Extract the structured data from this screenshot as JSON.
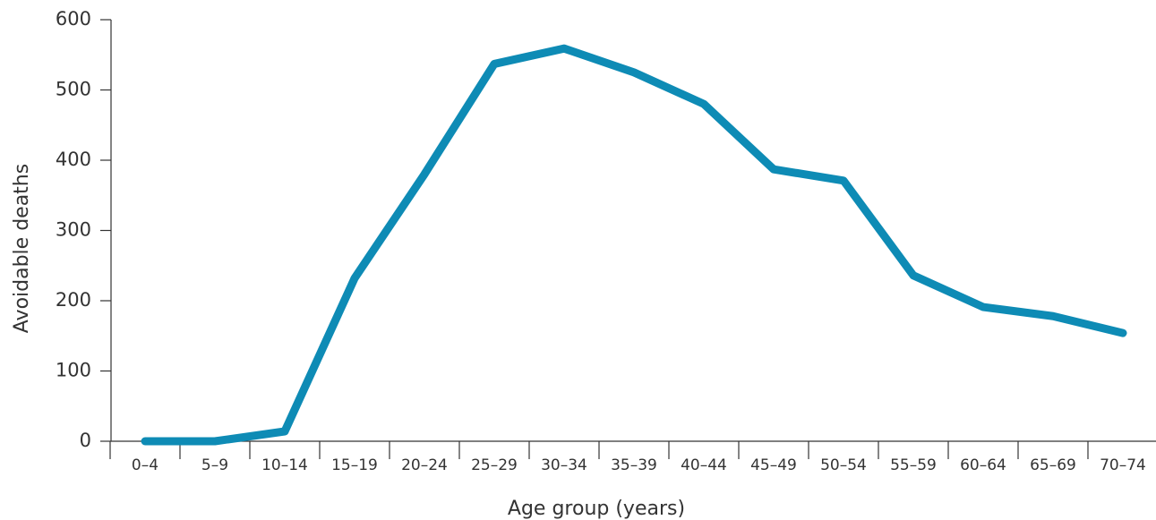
{
  "chart_data": {
    "type": "line",
    "title": "",
    "xlabel": "Age group (years)",
    "ylabel": "Avoidable deaths",
    "categories": [
      "0–4",
      "5–9",
      "10–14",
      "15–19",
      "20–24",
      "25–29",
      "30–34",
      "35–39",
      "40–44",
      "45–49",
      "50–54",
      "55–59",
      "60–64",
      "65–69",
      "70–74"
    ],
    "series": [
      {
        "values": [
          0,
          0,
          14,
          232,
          380,
          537,
          559,
          525,
          480,
          387,
          371,
          236,
          191,
          178,
          154
        ],
        "color": "#0e8bb5"
      }
    ],
    "ylim": [
      0,
      600
    ],
    "yticks": [
      0,
      100,
      200,
      300,
      400,
      500,
      600
    ],
    "grid": false,
    "legend": "none"
  }
}
